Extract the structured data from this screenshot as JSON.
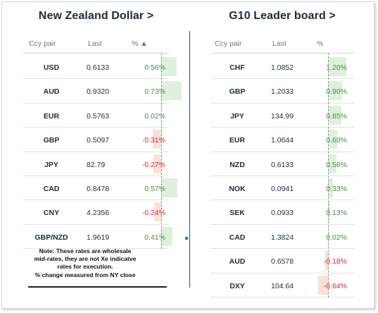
{
  "left_panel": {
    "title": "New Zealand Dollar >",
    "headers": {
      "pair": "Ccy pair",
      "last": "Last",
      "pct": "% ▲"
    },
    "rows": [
      {
        "pair": "USD",
        "last": "0.6133",
        "pct": "0.56%",
        "value": 0.56
      },
      {
        "pair": "AUD",
        "last": "0.9320",
        "pct": "0.73%",
        "value": 0.73
      },
      {
        "pair": "EUR",
        "last": "0.5763",
        "pct": "0.02%",
        "value": 0.02
      },
      {
        "pair": "GBP",
        "last": "0.5097",
        "pct": "-0.31%",
        "value": -0.31
      },
      {
        "pair": "JPY",
        "last": "82.79",
        "pct": "-0.27%",
        "value": -0.27
      },
      {
        "pair": "CAD",
        "last": "0.8478",
        "pct": "0.57%",
        "value": 0.57
      },
      {
        "pair": "CNY",
        "last": "4.2356",
        "pct": "-0.24%",
        "value": -0.24
      },
      {
        "pair": "GBP/NZD",
        "last": "1.9619",
        "pct": "0.41%",
        "value": 0.41
      }
    ],
    "note": {
      "line1": "Note: These rates are wholesale",
      "line2": "mid-rates, they are not Xe indicatve",
      "line3": "rates for execution.",
      "line4": "% change measured from NY close"
    }
  },
  "right_panel": {
    "title": "G10 Leader board >",
    "headers": {
      "pair": "Ccy pair",
      "last": "Last",
      "pct": "%"
    },
    "rows": [
      {
        "pair": "CHF",
        "last": "1.0852",
        "pct": "1.20%",
        "value": 1.2
      },
      {
        "pair": "GBP",
        "last": "1.2033",
        "pct": "0.90%",
        "value": 0.9
      },
      {
        "pair": "JPY",
        "last": "134.99",
        "pct": "0.85%",
        "value": 0.85
      },
      {
        "pair": "EUR",
        "last": "1.0644",
        "pct": "0.60%",
        "value": 0.6
      },
      {
        "pair": "NZD",
        "last": "0.6133",
        "pct": "0.56%",
        "value": 0.56
      },
      {
        "pair": "NOK",
        "last": "0.0941",
        "pct": "0.33%",
        "value": 0.33
      },
      {
        "pair": "SEK",
        "last": "0.0933",
        "pct": "0.13%",
        "value": 0.13
      },
      {
        "pair": "CAD",
        "last": "1.3824",
        "pct": "0.02%",
        "value": 0.02
      },
      {
        "pair": "AUD",
        "last": "0.6578",
        "pct": "-0.18%",
        "value": -0.18
      },
      {
        "pair": "DXY",
        "last": "104.64",
        "pct": "-0.64%",
        "value": -0.64
      }
    ]
  },
  "colors": {
    "positive_text": "#4b8a4b",
    "negative_text": "#cc2d2d",
    "positive_bar": "#dff0dc",
    "negative_bar": "#fbe0d7"
  }
}
